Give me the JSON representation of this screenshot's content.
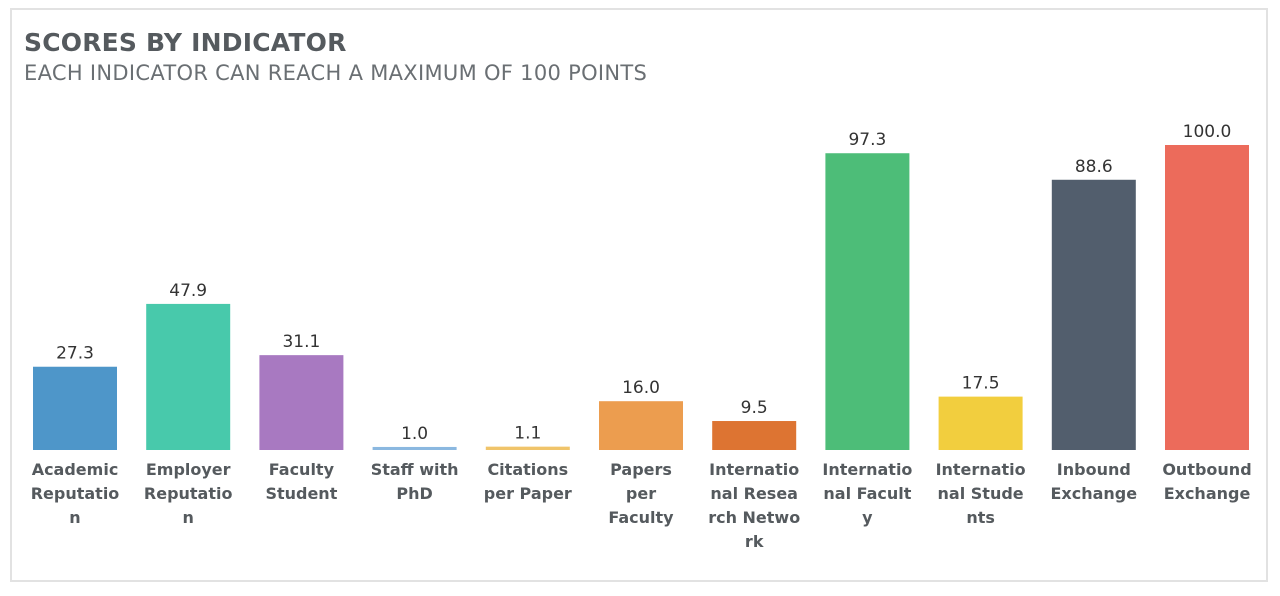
{
  "chart_data": {
    "type": "bar",
    "title": "SCORES BY INDICATOR",
    "subtitle": "EACH INDICATOR CAN REACH A MAXIMUM OF 100 POINTS",
    "categories": [
      [
        "Academic",
        "Reputatio",
        "n"
      ],
      [
        "Employer",
        "Reputatio",
        "n"
      ],
      [
        "Faculty",
        "Student"
      ],
      [
        "Staff with",
        "PhD"
      ],
      [
        "Citations",
        "per Paper"
      ],
      [
        "Papers",
        "per",
        "Faculty"
      ],
      [
        "Internatio",
        "nal Resea",
        "rch Netwo",
        "rk"
      ],
      [
        "Internatio",
        "nal Facult",
        "y"
      ],
      [
        "Internatio",
        "nal Stude",
        "nts"
      ],
      [
        "Inbound",
        "Exchange"
      ],
      [
        "Outbound",
        "Exchange"
      ]
    ],
    "values": [
      27.3,
      47.9,
      31.1,
      1.0,
      1.1,
      16.0,
      9.5,
      97.3,
      17.5,
      88.6,
      100.0
    ],
    "value_labels": [
      "27.3",
      "47.9",
      "31.1",
      "1.0",
      "1.1",
      "16.0",
      "9.5",
      "97.3",
      "17.5",
      "88.6",
      "100.0"
    ],
    "colors": [
      "#4e96c9",
      "#48c9ab",
      "#a879c1",
      "#8bb8e0",
      "#f0c46a",
      "#ec9d4f",
      "#dd7432",
      "#4dbd78",
      "#f2ce3e",
      "#525e6d",
      "#ec6b5b"
    ],
    "ylim": [
      0,
      100
    ],
    "grid": false,
    "legend": "none"
  }
}
